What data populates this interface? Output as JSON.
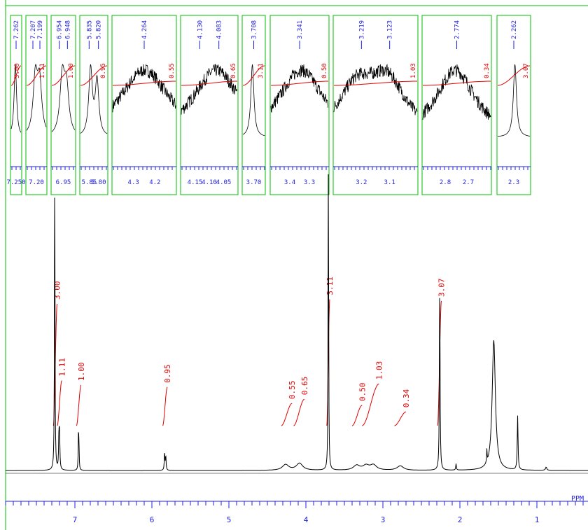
{
  "colors": {
    "spectrum": "#000000",
    "integral": "#e00000",
    "axis": "#2020e0",
    "inset_border": "#00c000",
    "peak_label": "#2020e0"
  },
  "chart_data": {
    "type": "line",
    "title": "",
    "xlabel": "PPM",
    "ylabel": "",
    "x_reversed": true,
    "xlim": [
      0.4,
      7.9
    ],
    "x_ticks": [
      7,
      6,
      5,
      4,
      3,
      2,
      1
    ],
    "peaks": [
      {
        "ppm": 7.262,
        "height": 1.0,
        "width": 0.004
      },
      {
        "ppm": 7.207,
        "height": 0.11,
        "width": 0.005
      },
      {
        "ppm": 7.199,
        "height": 0.1,
        "width": 0.005
      },
      {
        "ppm": 6.954,
        "height": 0.1,
        "width": 0.004
      },
      {
        "ppm": 6.948,
        "height": 0.08,
        "width": 0.004
      },
      {
        "ppm": 5.835,
        "height": 0.055,
        "width": 0.005
      },
      {
        "ppm": 5.82,
        "height": 0.045,
        "width": 0.005
      },
      {
        "ppm": 4.264,
        "height": 0.018,
        "width": 0.05
      },
      {
        "ppm": 4.083,
        "height": 0.022,
        "width": 0.05
      },
      {
        "ppm": 3.708,
        "height": 1.0,
        "width": 0.004
      },
      {
        "ppm": 3.341,
        "height": 0.015,
        "width": 0.05
      },
      {
        "ppm": 3.219,
        "height": 0.014,
        "width": 0.05
      },
      {
        "ppm": 3.123,
        "height": 0.016,
        "width": 0.05
      },
      {
        "ppm": 2.774,
        "height": 0.014,
        "width": 0.05
      },
      {
        "ppm": 2.262,
        "height": 0.6,
        "width": 0.005
      },
      {
        "ppm": 2.05,
        "height": 0.02,
        "width": 0.005
      },
      {
        "ppm": 1.65,
        "height": 0.04,
        "width": 0.004
      },
      {
        "ppm": 1.56,
        "height": 0.41,
        "width": 0.025
      },
      {
        "ppm": 1.25,
        "height": 0.17,
        "width": 0.006
      },
      {
        "ppm": 0.88,
        "height": 0.01,
        "width": 0.01
      }
    ],
    "integrals": [
      {
        "label": "3.00",
        "start": 7.28,
        "end": 7.23,
        "value": 3.0
      },
      {
        "label": "1.11",
        "start": 7.23,
        "end": 7.17,
        "value": 1.11
      },
      {
        "label": "1.00",
        "start": 6.98,
        "end": 6.92,
        "value": 1.0
      },
      {
        "label": "0.95",
        "start": 5.86,
        "end": 5.8,
        "value": 0.95
      },
      {
        "label": "0.55",
        "start": 4.32,
        "end": 4.18,
        "value": 0.55
      },
      {
        "label": "0.65",
        "start": 4.16,
        "end": 4.02,
        "value": 0.65
      },
      {
        "label": "3.11",
        "start": 3.73,
        "end": 3.69,
        "value": 3.11
      },
      {
        "label": "0.50",
        "start": 3.4,
        "end": 3.27,
        "value": 0.5
      },
      {
        "label": "1.03",
        "start": 3.27,
        "end": 3.05,
        "value": 1.03
      },
      {
        "label": "0.34",
        "start": 2.85,
        "end": 2.7,
        "value": 0.34
      },
      {
        "label": "3.07",
        "start": 2.29,
        "end": 2.24,
        "value": 3.07
      }
    ],
    "insets": [
      {
        "peak_labels": [
          "7.262"
        ],
        "ticks": [
          "7.250"
        ],
        "integral": "3.00"
      },
      {
        "peak_labels": [
          "7.207",
          "7.199"
        ],
        "ticks": [
          "7.20"
        ],
        "integral": "1.11"
      },
      {
        "peak_labels": [
          "6.954",
          "6.948"
        ],
        "ticks": [
          "6.95"
        ],
        "integral": "1.00"
      },
      {
        "peak_labels": [
          "5.835",
          "5.820"
        ],
        "ticks": [
          "5.85",
          "5.80"
        ],
        "integral": "0.95"
      },
      {
        "peak_labels": [
          "4.264"
        ],
        "ticks": [
          "4.3",
          "4.2"
        ],
        "integral": "0.55"
      },
      {
        "peak_labels": [
          "4.130",
          "4.083"
        ],
        "ticks": [
          "4.15",
          "4.10",
          "4.05"
        ],
        "integral": "0.65"
      },
      {
        "peak_labels": [
          "3.708"
        ],
        "ticks": [
          "3.70"
        ],
        "integral": "3.11"
      },
      {
        "peak_labels": [
          "3.341"
        ],
        "ticks": [
          "3.4",
          "3.3"
        ],
        "integral": "0.50"
      },
      {
        "peak_labels": [
          "3.219",
          "3.123"
        ],
        "ticks": [
          "3.2",
          "3.1"
        ],
        "integral": "1.03"
      },
      {
        "peak_labels": [
          "2.774"
        ],
        "ticks": [
          "2.8",
          "2.7"
        ],
        "integral": "0.34"
      },
      {
        "peak_labels": [
          "2.262"
        ],
        "ticks": [
          "2.3"
        ],
        "integral": "3.07"
      }
    ]
  }
}
